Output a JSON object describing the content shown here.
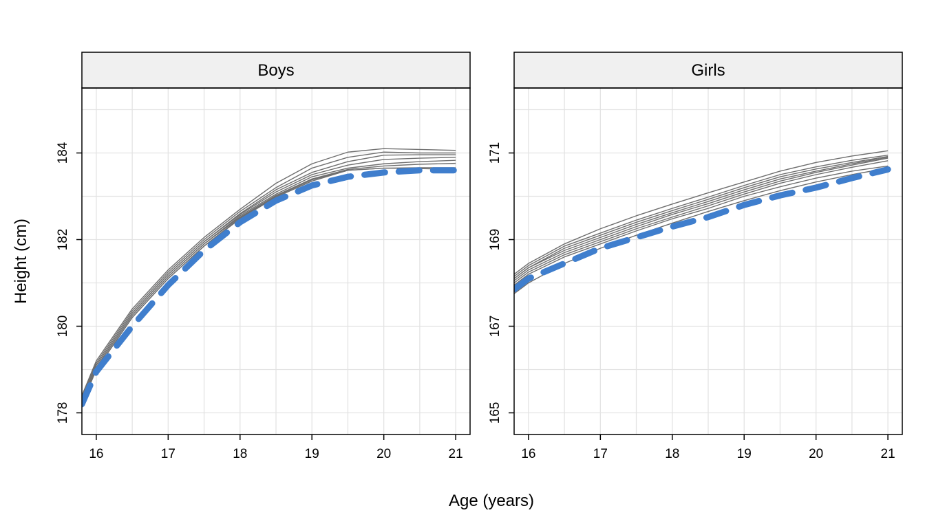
{
  "chart_data": {
    "type": "line",
    "xlabel": "Age (years)",
    "ylabel": "Height (cm)",
    "colors": {
      "imputed": "#6E6E6E",
      "reference": "#3F7ECD",
      "grid": "#E3E3E3",
      "strip_bg": "#F0F0F0"
    },
    "panels": [
      {
        "strip": "Boys",
        "xlim": [
          15.8,
          21.2
        ],
        "ylim": [
          177.5,
          185.5
        ],
        "xticks": [
          16,
          17,
          18,
          19,
          20,
          21
        ],
        "yticks": [
          178,
          180,
          182,
          184
        ],
        "x": [
          15.8,
          16.0,
          16.5,
          17.0,
          17.5,
          18.0,
          18.5,
          19.0,
          19.5,
          20.0,
          20.5,
          21.0
        ],
        "series": [
          {
            "role": "imputed",
            "values": [
              178.4,
              179.2,
              180.4,
              181.3,
              182.05,
              182.7,
              183.3,
              183.75,
              184.02,
              184.1,
              184.08,
              184.06
            ]
          },
          {
            "role": "imputed",
            "values": [
              178.35,
              179.15,
              180.35,
              181.25,
              182.0,
              182.65,
              183.2,
              183.65,
              183.9,
              184.02,
              184.0,
              184.0
            ]
          },
          {
            "role": "imputed",
            "values": [
              178.3,
              179.1,
              180.3,
              181.2,
              181.95,
              182.6,
              183.15,
              183.55,
              183.8,
              183.95,
              183.96,
              183.96
            ]
          },
          {
            "role": "imputed",
            "values": [
              178.3,
              179.1,
              180.3,
              181.2,
              181.95,
              182.58,
              183.1,
              183.5,
              183.72,
              183.85,
              183.88,
              183.9
            ]
          },
          {
            "role": "imputed",
            "values": [
              178.25,
              179.05,
              180.25,
              181.15,
              181.9,
              182.55,
              183.05,
              183.45,
              183.65,
              183.75,
              183.8,
              183.83
            ]
          },
          {
            "role": "imputed",
            "values": [
              178.25,
              179.05,
              180.25,
              181.15,
              181.9,
              182.52,
              183.02,
              183.4,
              183.62,
              183.7,
              183.74,
              183.76
            ]
          },
          {
            "role": "imputed",
            "values": [
              178.2,
              179.0,
              180.2,
              181.1,
              181.85,
              182.5,
              183.0,
              183.38,
              183.6,
              183.65,
              183.66,
              183.66
            ]
          },
          {
            "role": "imputed",
            "values": [
              178.2,
              179.0,
              180.2,
              181.1,
              181.85,
              182.48,
              182.98,
              183.35,
              183.6,
              183.65,
              183.64,
              183.62
            ]
          },
          {
            "role": "reference",
            "values": [
              178.2,
              178.95,
              180.0,
              180.95,
              181.75,
              182.4,
              182.9,
              183.25,
              183.45,
              183.55,
              183.6,
              183.6
            ]
          }
        ]
      },
      {
        "strip": "Girls",
        "xlim": [
          15.8,
          21.2
        ],
        "ylim": [
          164.5,
          172.5
        ],
        "xticks": [
          16,
          17,
          18,
          19,
          20,
          21
        ],
        "yticks": [
          165,
          167,
          169,
          171
        ],
        "x": [
          15.8,
          16.0,
          16.5,
          17.0,
          17.5,
          18.0,
          18.5,
          19.0,
          19.5,
          20.0,
          20.5,
          21.0
        ],
        "series": [
          {
            "role": "imputed",
            "values": [
              168.2,
              168.45,
              168.9,
              169.25,
              169.55,
              169.82,
              170.08,
              170.33,
              170.58,
              170.78,
              170.93,
              171.05
            ]
          },
          {
            "role": "imputed",
            "values": [
              168.15,
              168.4,
              168.85,
              169.15,
              169.45,
              169.72,
              169.98,
              170.25,
              170.5,
              170.68,
              170.83,
              170.95
            ]
          },
          {
            "role": "imputed",
            "values": [
              168.1,
              168.35,
              168.8,
              169.1,
              169.4,
              169.67,
              169.93,
              170.2,
              170.45,
              170.63,
              170.78,
              170.92
            ]
          },
          {
            "role": "imputed",
            "values": [
              168.1,
              168.35,
              168.75,
              169.05,
              169.35,
              169.62,
              169.88,
              170.15,
              170.4,
              170.58,
              170.75,
              170.9
            ]
          },
          {
            "role": "imputed",
            "values": [
              168.05,
              168.3,
              168.7,
              169.0,
              169.3,
              169.58,
              169.83,
              170.1,
              170.35,
              170.55,
              170.72,
              170.88
            ]
          },
          {
            "role": "imputed",
            "values": [
              168.0,
              168.25,
              168.65,
              168.95,
              169.25,
              169.52,
              169.78,
              170.05,
              170.3,
              170.5,
              170.67,
              170.82
            ]
          },
          {
            "role": "imputed",
            "values": [
              167.95,
              168.2,
              168.6,
              168.9,
              169.2,
              169.48,
              169.72,
              170.0,
              170.22,
              170.42,
              170.58,
              170.7
            ]
          },
          {
            "role": "imputed",
            "values": [
              167.75,
              168.0,
              168.45,
              168.8,
              169.1,
              169.38,
              169.65,
              169.9,
              170.13,
              170.33,
              170.5,
              170.65
            ]
          },
          {
            "role": "reference",
            "values": [
              167.85,
              168.1,
              168.45,
              168.8,
              169.05,
              169.3,
              169.52,
              169.8,
              170.02,
              170.2,
              170.42,
              170.62
            ]
          }
        ]
      }
    ]
  }
}
